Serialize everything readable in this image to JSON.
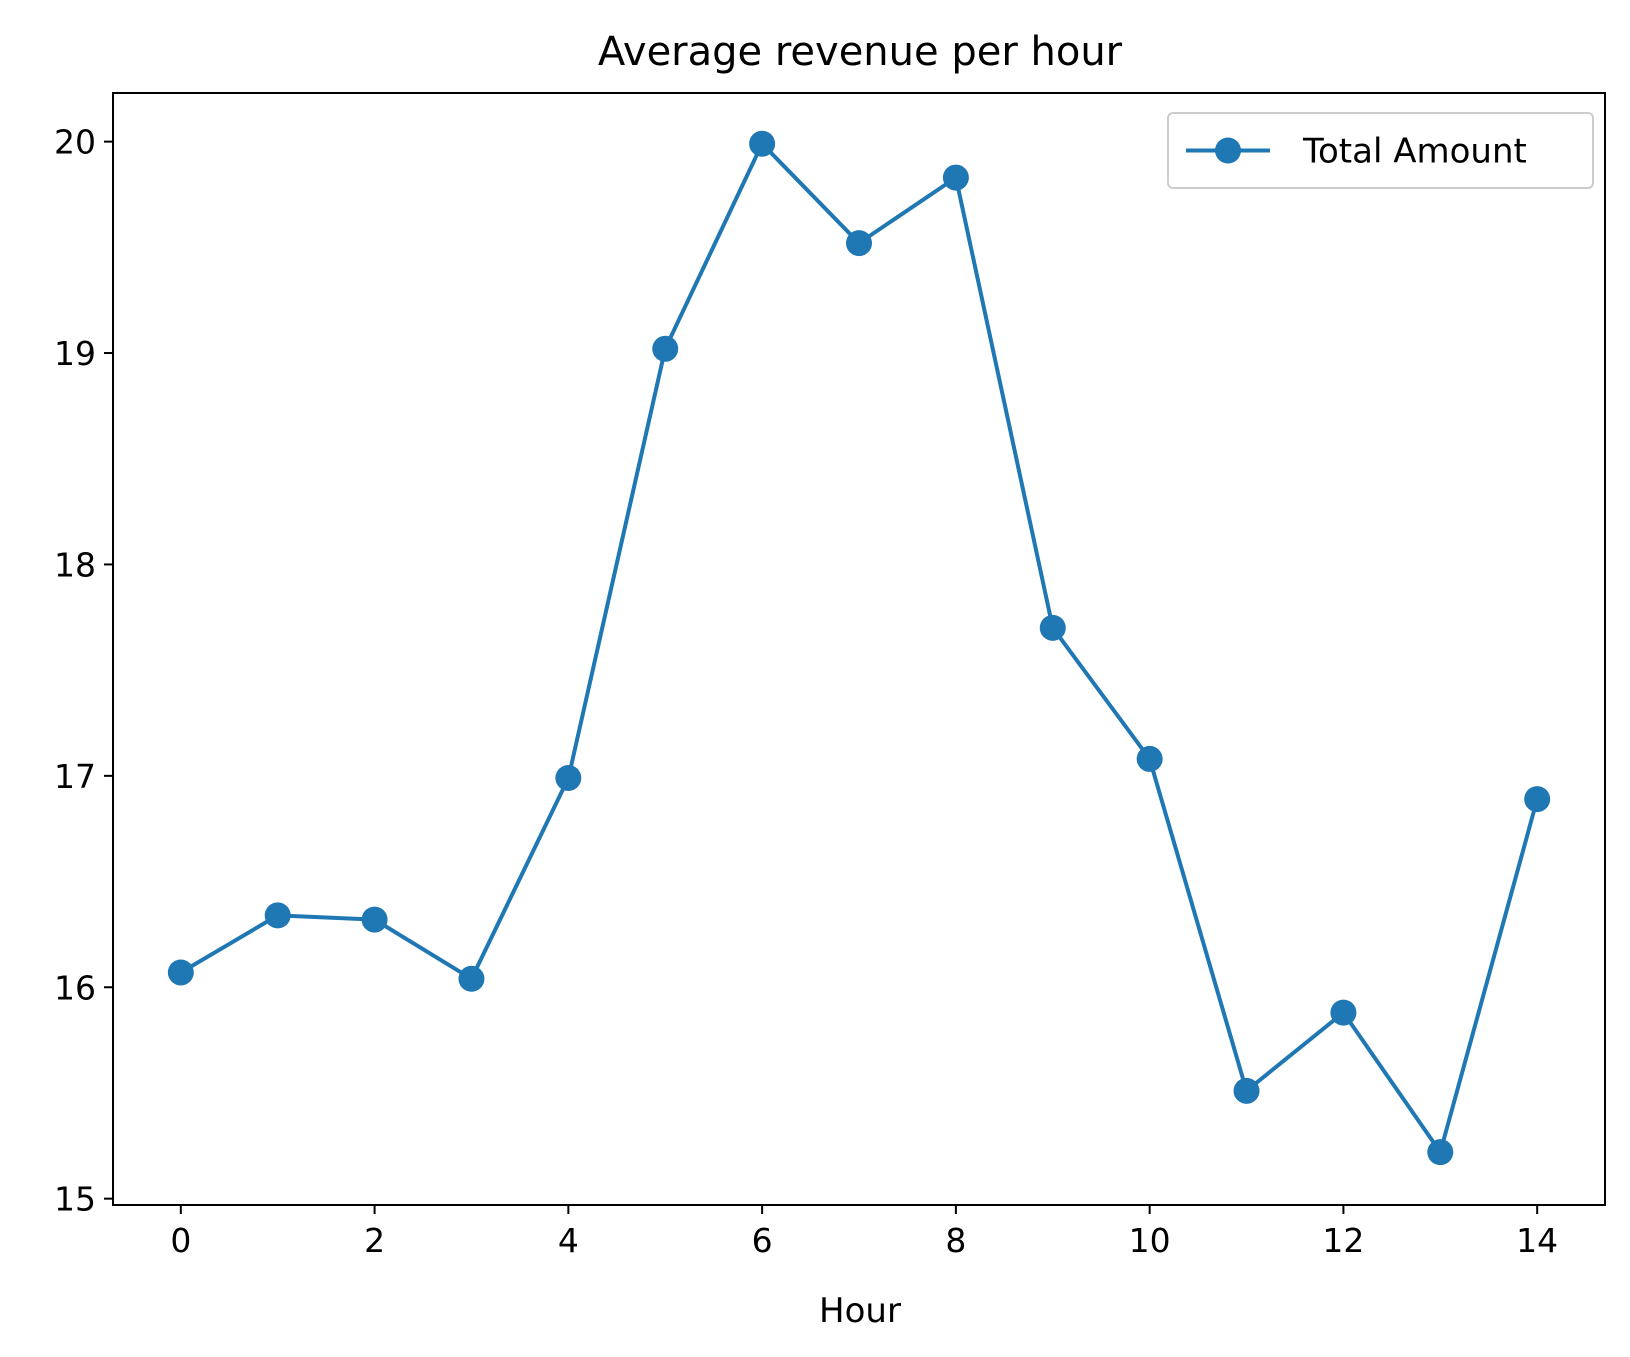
{
  "chart_data": {
    "type": "line",
    "title": "Average revenue per hour",
    "xlabel": "Hour",
    "ylabel": "",
    "xlim": [
      -0.7,
      14.7
    ],
    "ylim": [
      14.97,
      20.23
    ],
    "x_ticks": [
      0,
      2,
      4,
      6,
      8,
      10,
      12,
      14
    ],
    "y_ticks": [
      15,
      16,
      17,
      18,
      19,
      20
    ],
    "grid": false,
    "legend_position": "top-right",
    "series": [
      {
        "name": "Total Amount",
        "color": "#1f77b4",
        "marker": "circle",
        "x": [
          0,
          1,
          2,
          3,
          4,
          5,
          6,
          7,
          8,
          9,
          10,
          11,
          12,
          13,
          14
        ],
        "values": [
          16.07,
          16.34,
          16.32,
          16.04,
          16.99,
          19.02,
          19.99,
          19.52,
          19.83,
          17.7,
          17.08,
          15.51,
          15.88,
          15.22,
          16.89
        ]
      }
    ]
  }
}
